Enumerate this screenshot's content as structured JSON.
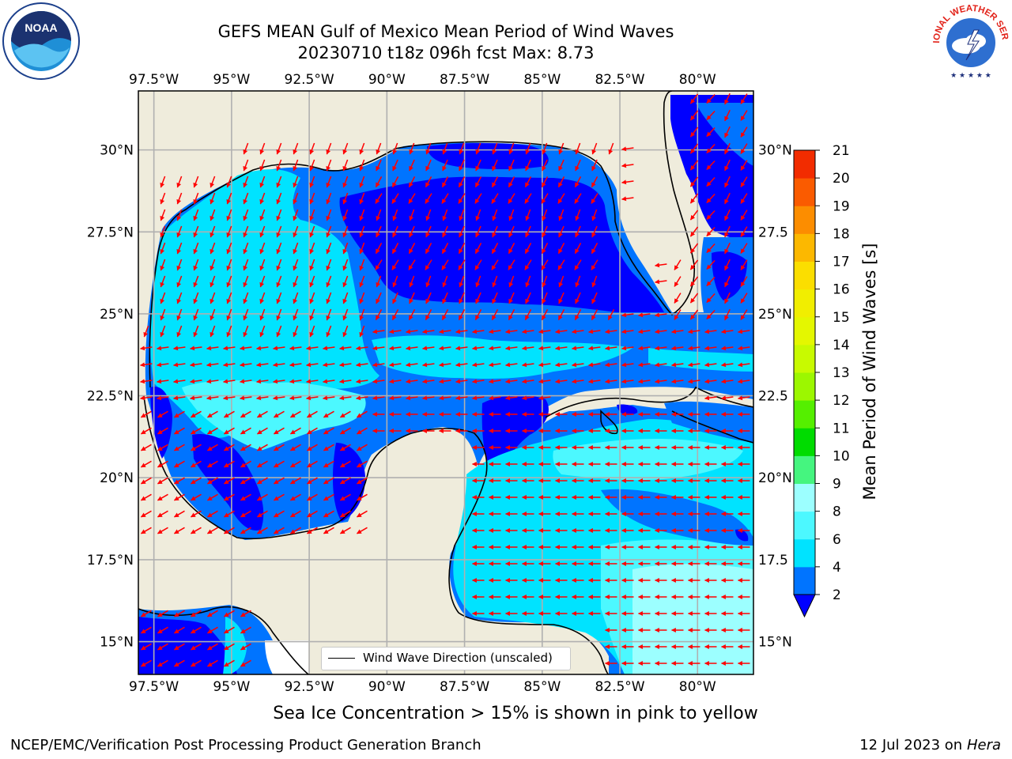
{
  "title": {
    "line1": "GEFS MEAN Gulf of Mexico Mean Period of Wind Waves",
    "line2": "20230710 t18z 096h fcst   Max: 8.73"
  },
  "map": {
    "lon_ticks": [
      "97.5°W",
      "95°W",
      "92.5°W",
      "90°W",
      "87.5°W",
      "85°W",
      "82.5°W",
      "80°W"
    ],
    "lat_ticks_left": [
      "30°N",
      "27.5°N",
      "25°N",
      "22.5°N",
      "20°N",
      "17.5°N",
      "15°N"
    ],
    "lat_ticks_right": [
      "30°N",
      "27.5",
      "25°N",
      "22.5",
      "20°N",
      "17.5",
      "15°N"
    ],
    "lon_range": [
      -98,
      -78.2
    ],
    "lat_range": [
      14.0,
      31.8
    ],
    "land_color": "#efecdc",
    "grid": true
  },
  "legend": {
    "label": "Wind Wave Direction (unscaled)"
  },
  "colorbar": {
    "label": "Mean Period of Wind Waves [s]",
    "ticks": [
      "2",
      "4",
      "6",
      "8",
      "9",
      "10",
      "11",
      "12",
      "13",
      "14",
      "15",
      "16",
      "17",
      "18",
      "19",
      "20",
      "21"
    ],
    "colors": [
      "#0074ff",
      "#00e3ff",
      "#4cf8ff",
      "#9cffff",
      "#45f57f",
      "#00dc00",
      "#55ef00",
      "#9cf700",
      "#c8fa00",
      "#e4f700",
      "#f1ee00",
      "#fbde00",
      "#fcb800",
      "#fc8d00",
      "#fa5b00",
      "#f22c00",
      "#ff0000"
    ],
    "extend_color": "#0000ff"
  },
  "ice_note": "Sea Ice Concentration > 15% is shown in pink to yellow",
  "footer": {
    "left": "NCEP/EMC/Verification Post Processing Product Generation Branch",
    "right_date": "12 Jul 2023 on",
    "right_host": "Hera"
  },
  "logos": {
    "noaa": "NOAA",
    "nws": "NATIONAL WEATHER SERVICE"
  }
}
